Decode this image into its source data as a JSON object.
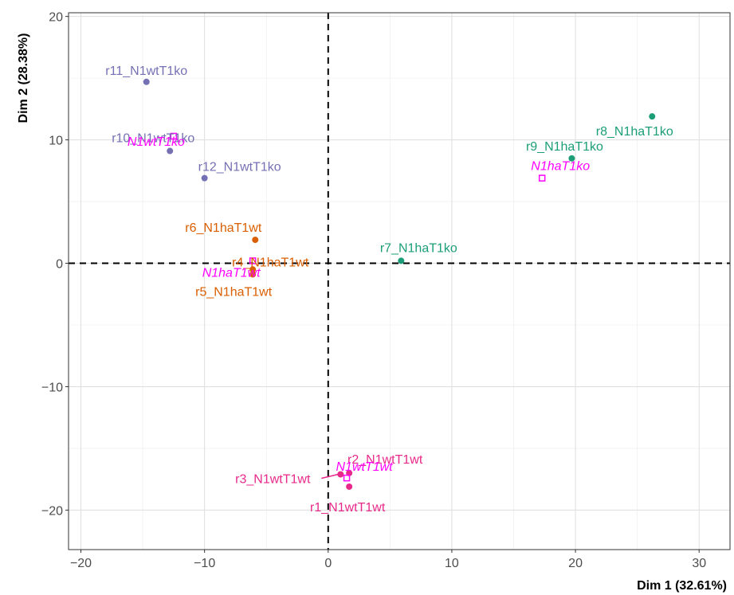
{
  "chart_data": {
    "type": "scatter",
    "title": "",
    "xlabel": "Dim 1 (32.61%)",
    "ylabel": "Dim 2 (28.38%)",
    "xlim": [
      -21,
      32.5
    ],
    "ylim": [
      -23.2,
      20.3
    ],
    "x_ticks": [
      -20,
      -10,
      0,
      10,
      20,
      30
    ],
    "y_ticks": [
      -20,
      -10,
      0,
      10,
      20
    ],
    "x_tick_labels": [
      "−20",
      "−10",
      "0",
      "10",
      "20",
      "30"
    ],
    "y_tick_labels": [
      "−20",
      "−10",
      "0",
      "10",
      "20"
    ],
    "grid": true,
    "reference_lines": {
      "x": 0,
      "y": 0,
      "style": "dashed"
    },
    "colors": {
      "N1wtT1ko": "#7570b3",
      "N1haT1wt": "#d95f02",
      "N1haT1ko": "#1b9e77",
      "N1wtT1wt": "#e7298a",
      "group_centroid": "#ff00ff"
    },
    "points": [
      {
        "label": "r11_N1wtT1ko",
        "group": "N1wtT1ko",
        "x": -14.7,
        "y": 14.7
      },
      {
        "label": "r10_N1wtT1ko",
        "group": "N1wtT1ko",
        "x": -12.8,
        "y": 9.1
      },
      {
        "label": "r12_N1wtT1ko",
        "group": "N1wtT1ko",
        "x": -10.0,
        "y": 6.9
      },
      {
        "label": "r6_N1haT1wt",
        "group": "N1haT1wt",
        "x": -5.9,
        "y": 1.9
      },
      {
        "label": "r4_N1haT1wt",
        "group": "N1haT1wt",
        "x": -6.1,
        "y": -0.5
      },
      {
        "label": "r5_N1haT1wt",
        "group": "N1haT1wt",
        "x": -6.1,
        "y": -0.9
      },
      {
        "label": "r7_N1haT1ko",
        "group": "N1haT1ko",
        "x": 5.9,
        "y": 0.2
      },
      {
        "label": "r8_N1haT1ko",
        "group": "N1haT1ko",
        "x": 26.2,
        "y": 11.9
      },
      {
        "label": "r9_N1haT1ko",
        "group": "N1haT1ko",
        "x": 19.7,
        "y": 8.5
      },
      {
        "label": "r2_N1wtT1wt",
        "group": "N1wtT1wt",
        "x": 1.7,
        "y": -17.0
      },
      {
        "label": "r3_N1wtT1wt",
        "group": "N1wtT1wt",
        "x": 1.0,
        "y": -17.1
      },
      {
        "label": "r1_N1wtT1wt",
        "group": "N1wtT1wt",
        "x": 1.7,
        "y": -18.1
      }
    ],
    "group_centroids": [
      {
        "label": "N1wtT1ko",
        "x": -12.5,
        "y": 10.3
      },
      {
        "label": "N1haT1wt",
        "x": -6.1,
        "y": 0.2
      },
      {
        "label": "N1haT1ko",
        "x": 17.3,
        "y": 6.9
      },
      {
        "label": "N1wtT1wt",
        "x": 1.5,
        "y": -17.4
      }
    ]
  }
}
